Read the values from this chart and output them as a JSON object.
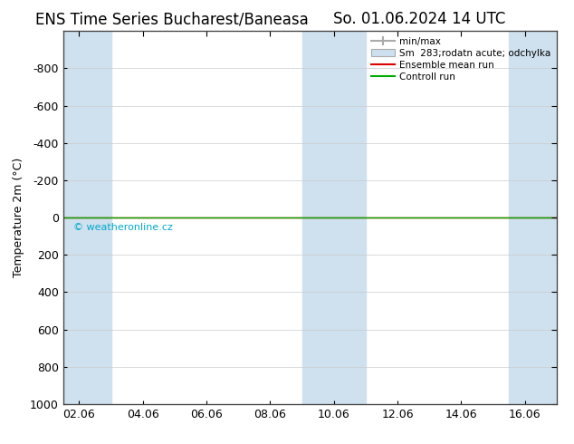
{
  "title_left": "ENS Time Series Bucharest/Baneasa",
  "title_right": "So. 01.06.2024 14 UTC",
  "ylabel": "Temperature 2m (°C)",
  "ylim_bottom": 1000,
  "ylim_top": -1000,
  "yticks": [
    -800,
    -600,
    -400,
    -200,
    0,
    200,
    400,
    600,
    800,
    1000
  ],
  "xtick_labels": [
    "02.06",
    "04.06",
    "06.06",
    "08.06",
    "10.06",
    "12.06",
    "14.06",
    "16.06"
  ],
  "xtick_positions": [
    0,
    2,
    4,
    6,
    8,
    10,
    12,
    14
  ],
  "x_min": -0.5,
  "x_max": 15.0,
  "shade_bands": [
    {
      "x_start": -0.5,
      "x_end": 1.0,
      "color": "#cfe0ee"
    },
    {
      "x_start": 7.0,
      "x_end": 9.0,
      "color": "#cfe0ee"
    },
    {
      "x_start": 13.5,
      "x_end": 15.0,
      "color": "#cfe0ee"
    }
  ],
  "minmax_color": "#aaaaaa",
  "ensemble_spread_color": "#cce0f0",
  "ensemble_mean_color": "#dd0000",
  "control_run_color": "#00aa00",
  "watermark_text": "© weatheronline.cz",
  "watermark_color": "#00aacc",
  "background_color": "#ffffff",
  "plot_bg_color": "#ffffff",
  "legend_entries": [
    "min/max",
    "Sm  283;rodatn acute; odchylka",
    "Ensemble mean run",
    "Controll run"
  ],
  "title_fontsize": 12,
  "tick_fontsize": 9,
  "ylabel_fontsize": 9,
  "grid_color": "#cccccc",
  "border_color": "#444444"
}
